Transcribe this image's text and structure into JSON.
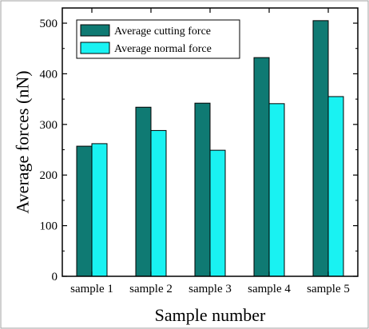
{
  "chart_data": {
    "type": "bar",
    "categories": [
      "sample 1",
      "sample 2",
      "sample 3",
      "sample 4",
      "sample 5"
    ],
    "series": [
      {
        "name": "Average cutting force",
        "values": [
          257,
          334,
          342,
          432,
          505
        ],
        "color": "#0f7a73"
      },
      {
        "name": "Average normal force",
        "values": [
          262,
          288,
          249,
          341,
          355
        ],
        "color": "#19f2f2"
      }
    ],
    "xlabel": "Sample number",
    "ylabel": "Average forces (nN)",
    "ylim": [
      0,
      530
    ],
    "yticks": [
      0,
      100,
      200,
      300,
      400,
      500
    ],
    "legend_position": "top-left",
    "grid": false
  },
  "colors": {
    "frame": "#a0a0a0",
    "axis": "#000000",
    "bar_edge": "#000000"
  }
}
